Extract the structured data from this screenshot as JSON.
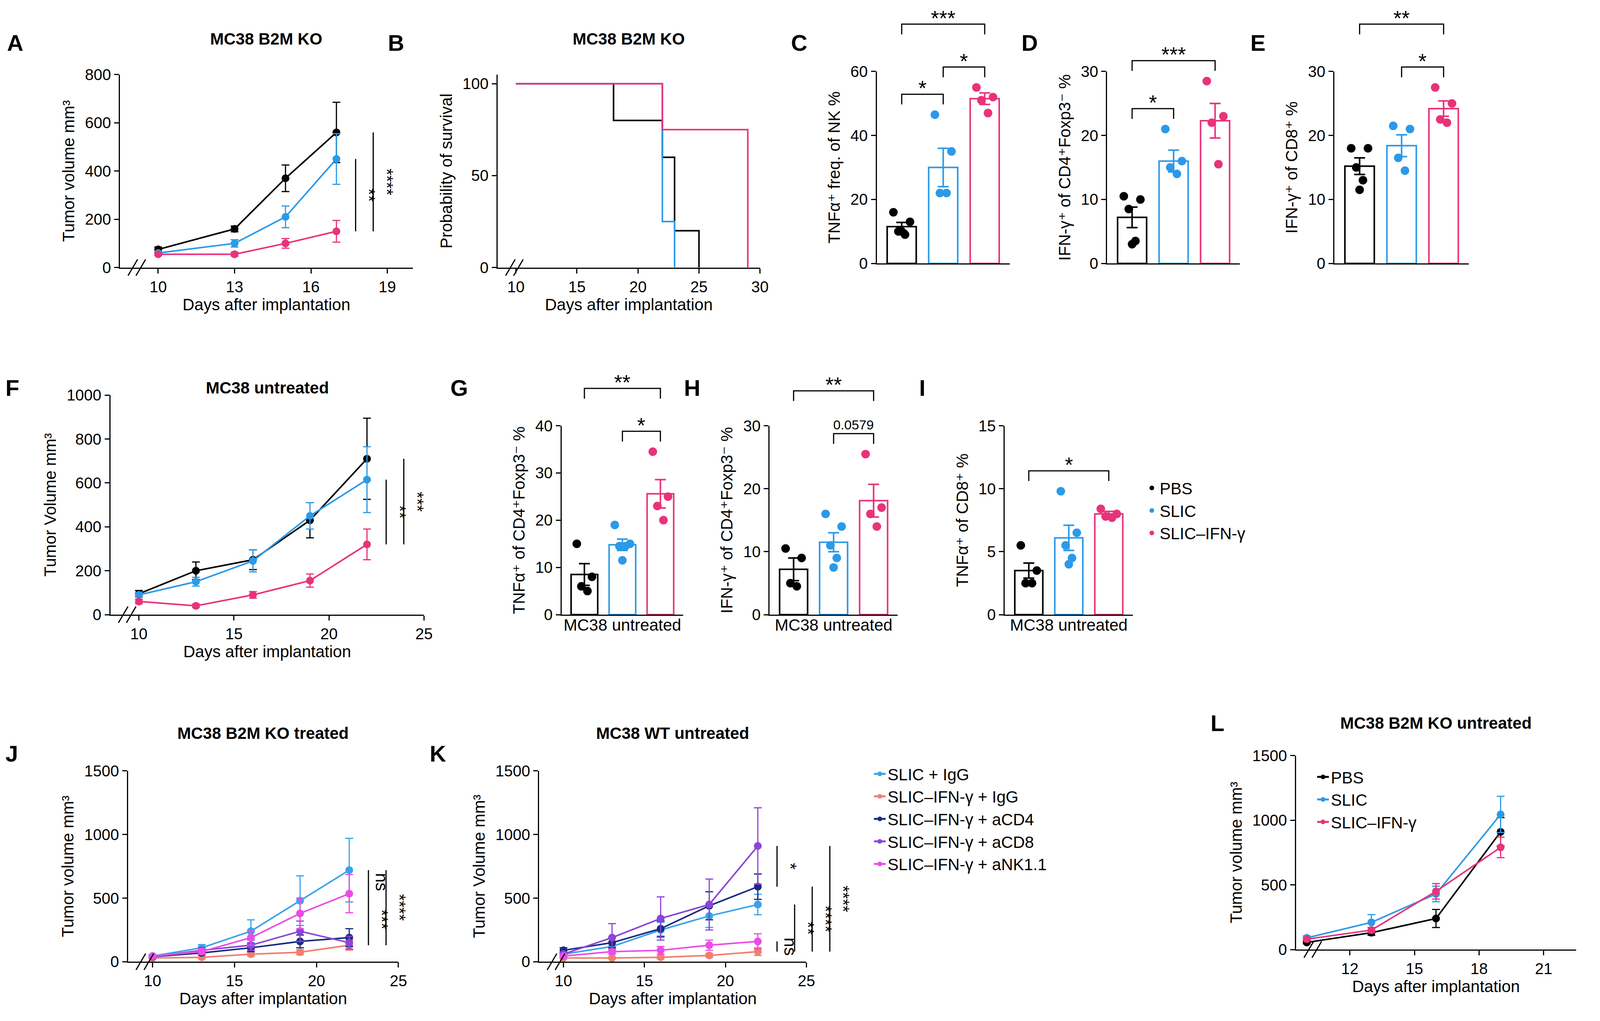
{
  "chart_data": [
    {
      "label": "A",
      "type": "line",
      "title": "MC38 B2M KO",
      "x_label": "Days after implantation",
      "y_label": "Tumor volume mm³",
      "x": [
        10,
        13,
        15,
        17
      ],
      "xlim": [
        8.5,
        20
      ],
      "xticks": [
        10,
        13,
        16,
        19
      ],
      "ylim": [
        0,
        800
      ],
      "yticks": [
        0,
        200,
        400,
        600,
        800
      ],
      "series": [
        {
          "name": "PBS",
          "color": "#000000",
          "values": [
            75,
            160,
            370,
            560
          ],
          "errors": [
            10,
            12,
            55,
            125
          ]
        },
        {
          "name": "SLIC",
          "color": "#2b9ae8",
          "values": [
            60,
            100,
            210,
            450
          ],
          "errors": [
            8,
            15,
            45,
            105
          ]
        },
        {
          "name": "SLIC–IFN-γ",
          "color": "#e8337a",
          "values": [
            55,
            55,
            100,
            150
          ],
          "errors": [
            5,
            8,
            20,
            45
          ]
        }
      ],
      "annotations": [
        {
          "text": "**",
          "series": [
            "SLIC",
            "SLIC–IFN-γ"
          ]
        },
        {
          "text": "****",
          "series": [
            "PBS",
            "SLIC–IFN-γ"
          ]
        }
      ]
    },
    {
      "label": "B",
      "type": "step",
      "title": "MC38 B2M KO",
      "x_label": "Days after implantation",
      "y_label": "Probability of survival",
      "xlim": [
        8.5,
        30
      ],
      "xticks": [
        10,
        15,
        20,
        25,
        30
      ],
      "ylim": [
        0,
        105
      ],
      "yticks": [
        0,
        50,
        100
      ],
      "series": [
        {
          "name": "PBS",
          "color": "#000000",
          "x": [
            10,
            18,
            22,
            23,
            25
          ],
          "values": [
            100,
            80,
            60,
            20,
            0
          ]
        },
        {
          "name": "SLIC",
          "color": "#2b9ae8",
          "x": [
            10,
            22,
            23
          ],
          "values": [
            100,
            25,
            0
          ]
        },
        {
          "name": "SLIC–IFN-γ",
          "color": "#e8337a",
          "x": [
            10,
            22,
            29
          ],
          "values": [
            100,
            75,
            0
          ]
        }
      ]
    },
    {
      "label": "C",
      "type": "bar",
      "y_label": "TNFα⁺ freq. of NK %",
      "categories": [
        "PBS",
        "SLIC",
        "SLIC–IFN-γ"
      ],
      "colors": [
        "#000000",
        "#2b9ae8",
        "#e8337a"
      ],
      "values": [
        11.5,
        30,
        51.5
      ],
      "errors": [
        1.3,
        6,
        1.8
      ],
      "points": [
        [
          16,
          13,
          10,
          9,
          10
        ],
        [
          46.5,
          35,
          22,
          22
        ],
        [
          55,
          52,
          51,
          47
        ]
      ],
      "ylim": [
        0,
        60
      ],
      "yticks": [
        0,
        20,
        40,
        60
      ],
      "tick_labels": "y",
      "annotations": [
        {
          "text": "*",
          "groups": [
            0,
            1
          ]
        },
        {
          "text": "*",
          "groups": [
            1,
            2
          ]
        },
        {
          "text": "***",
          "groups": [
            0,
            2
          ]
        }
      ]
    },
    {
      "label": "D",
      "type": "bar",
      "y_label": "IFN-γ⁺ of CD4⁺Foxp3⁻ %",
      "categories": [
        "PBS",
        "SLIC",
        "SLIC–IFN-γ"
      ],
      "colors": [
        "#000000",
        "#2b9ae8",
        "#e8337a"
      ],
      "values": [
        7.2,
        16,
        22.3
      ],
      "errors": [
        1.6,
        1.7,
        2.7
      ],
      "points": [
        [
          10.5,
          10,
          8.5,
          3.5,
          3
        ],
        [
          21,
          16,
          15,
          14
        ],
        [
          28.5,
          23,
          22,
          15.5
        ]
      ],
      "ylim": [
        0,
        30
      ],
      "yticks": [
        0,
        10,
        20,
        30
      ],
      "tick_labels": "y",
      "annotations": [
        {
          "text": "*",
          "groups": [
            0,
            1
          ]
        },
        {
          "text": "***",
          "groups": [
            0,
            2
          ]
        }
      ]
    },
    {
      "label": "E",
      "type": "bar",
      "y_label": "IFN-γ⁺ of CD8⁺ %",
      "categories": [
        "PBS",
        "SLIC",
        "SLIC–IFN-γ"
      ],
      "colors": [
        "#000000",
        "#2b9ae8",
        "#e8337a"
      ],
      "values": [
        15.2,
        18.4,
        24.2
      ],
      "errors": [
        1.3,
        1.7,
        1.2
      ],
      "points": [
        [
          18,
          18,
          15,
          13,
          11.5
        ],
        [
          21.5,
          21,
          16.5,
          14.5
        ],
        [
          27.5,
          25,
          22.5,
          22
        ]
      ],
      "ylim": [
        0,
        30
      ],
      "yticks": [
        0,
        10,
        20,
        30
      ],
      "tick_labels": "y",
      "annotations": [
        {
          "text": "*",
          "groups": [
            1,
            2
          ]
        },
        {
          "text": "**",
          "groups": [
            0,
            2
          ]
        }
      ]
    },
    {
      "label": "F",
      "type": "line",
      "title": "MC38 untreated",
      "x_label": "Days after implantation",
      "y_label": "Tumor Volume mm³",
      "x": [
        10,
        13,
        16,
        19,
        22
      ],
      "xlim": [
        8.5,
        25
      ],
      "xticks": [
        10,
        15,
        20,
        25
      ],
      "ylim": [
        0,
        1000
      ],
      "yticks": [
        0,
        200,
        400,
        600,
        800,
        1000
      ],
      "series": [
        {
          "name": "PBS",
          "color": "#000000",
          "values": [
            95,
            200,
            250,
            430,
            710
          ],
          "errors": [
            15,
            40,
            45,
            80,
            185
          ]
        },
        {
          "name": "SLIC",
          "color": "#2b9ae8",
          "values": [
            90,
            150,
            245,
            450,
            615
          ],
          "errors": [
            10,
            20,
            50,
            60,
            150
          ]
        },
        {
          "name": "SLIC–IFN-γ",
          "color": "#e8337a",
          "values": [
            60,
            40,
            90,
            155,
            320
          ],
          "errors": [
            10,
            8,
            15,
            30,
            70
          ]
        }
      ],
      "annotations": [
        {
          "text": "**",
          "series": [
            "SLIC",
            "SLIC–IFN-γ"
          ]
        },
        {
          "text": "***",
          "series": [
            "PBS",
            "SLIC–IFN-γ"
          ]
        }
      ]
    },
    {
      "label": "G",
      "type": "bar",
      "x_label": "MC38 untreated",
      "y_label": "TNFα⁺ of CD4⁺Foxp3⁻ %",
      "categories": [
        "PBS",
        "SLIC",
        "SLIC–IFN-γ"
      ],
      "colors": [
        "#000000",
        "#2b9ae8",
        "#e8337a"
      ],
      "values": [
        8.5,
        14.8,
        25.6
      ],
      "errors": [
        2.3,
        1.2,
        3
      ],
      "points": [
        [
          15,
          8,
          6,
          5
        ],
        [
          19,
          15,
          14.5,
          14.5,
          11.5
        ],
        [
          34.5,
          25,
          23,
          20
        ]
      ],
      "ylim": [
        0,
        40
      ],
      "yticks": [
        0,
        10,
        20,
        30,
        40
      ],
      "tick_labels": "y",
      "annotations": [
        {
          "text": "*",
          "groups": [
            1,
            2
          ]
        },
        {
          "text": "**",
          "groups": [
            0,
            2
          ]
        }
      ]
    },
    {
      "label": "H",
      "type": "bar",
      "x_label": "MC38 untreated",
      "y_label": "IFN-γ⁺ of CD4⁺Foxp3⁻ %",
      "categories": [
        "PBS",
        "SLIC",
        "SLIC–IFN-γ"
      ],
      "colors": [
        "#000000",
        "#2b9ae8",
        "#e8337a"
      ],
      "values": [
        7.2,
        11.5,
        18.1
      ],
      "errors": [
        1.8,
        1.5,
        2.6
      ],
      "points": [
        [
          10.5,
          9,
          5,
          4.5
        ],
        [
          16,
          14,
          11,
          9,
          7.5
        ],
        [
          25.5,
          17,
          16,
          14
        ]
      ],
      "ylim": [
        0,
        30
      ],
      "yticks": [
        0,
        10,
        20,
        30
      ],
      "tick_labels": "y",
      "annotations": [
        {
          "text": "0.0579",
          "groups": [
            1,
            2
          ]
        },
        {
          "text": "**",
          "groups": [
            0,
            2
          ]
        }
      ]
    },
    {
      "label": "I",
      "type": "bar",
      "x_label": "MC38 untreated",
      "y_label": "TNFα⁺ of CD8⁺ %",
      "categories": [
        "PBS",
        "SLIC",
        "SLIC–IFN-γ"
      ],
      "colors": [
        "#000000",
        "#2b9ae8",
        "#e8337a"
      ],
      "values": [
        3.5,
        6.1,
        8
      ],
      "errors": [
        0.6,
        1,
        0.2
      ],
      "points": [
        [
          5.5,
          3.5,
          2.5,
          2.5
        ],
        [
          9.8,
          6.5,
          5.5,
          4.5,
          4
        ],
        [
          8.4,
          8,
          7.8,
          7.7
        ]
      ],
      "ylim": [
        0,
        15
      ],
      "yticks": [
        0,
        5,
        10,
        15
      ],
      "tick_labels": "y",
      "legend": "right",
      "annotations": [
        {
          "text": "*",
          "groups": [
            0,
            2
          ]
        }
      ]
    },
    {
      "label": "J",
      "type": "line",
      "title": "MC38 B2M KO treated",
      "x_label": "Days after implantation",
      "y_label": "Tumor volume mm³",
      "x": [
        10,
        13,
        16,
        19,
        22
      ],
      "xlim": [
        8.5,
        25
      ],
      "xticks": [
        10,
        15,
        20,
        25
      ],
      "ylim": [
        0,
        1500
      ],
      "yticks": [
        0,
        500,
        1000,
        1500
      ],
      "series": [
        {
          "name": "SLIC + IgG",
          "color": "#3aa3e8",
          "values": [
            45,
            110,
            240,
            480,
            720
          ],
          "errors": [
            10,
            25,
            90,
            195,
            250
          ]
        },
        {
          "name": "SLIC–IFN-γ + IgG",
          "color": "#f07f6e",
          "values": [
            30,
            35,
            60,
            75,
            130
          ],
          "errors": [
            5,
            8,
            15,
            20,
            40
          ]
        },
        {
          "name": "SLIC–IFN-γ + aCD4",
          "color": "#1b2a80",
          "values": [
            40,
            70,
            110,
            160,
            190
          ],
          "errors": [
            8,
            15,
            30,
            50,
            70
          ]
        },
        {
          "name": "SLIC–IFN-γ + aCD8",
          "color": "#8b45d8",
          "values": [
            40,
            90,
            130,
            240,
            150
          ],
          "errors": [
            8,
            20,
            40,
            80,
            50
          ]
        },
        {
          "name": "SLIC–IFN-γ + aNK1.1",
          "color": "#ea4de6",
          "values": [
            45,
            80,
            190,
            380,
            535
          ],
          "errors": [
            10,
            20,
            60,
            120,
            150
          ]
        }
      ],
      "annotations": [
        {
          "text": "ns",
          "series": [
            "SLIC + IgG",
            "SLIC–IFN-γ + aNK1.1"
          ]
        },
        {
          "text": "***",
          "series": [
            "SLIC–IFN-γ + aNK1.1",
            "SLIC–IFN-γ + IgG"
          ]
        },
        {
          "text": "****",
          "series": [
            "SLIC + IgG",
            "SLIC–IFN-γ + IgG"
          ]
        }
      ]
    },
    {
      "label": "K",
      "type": "line",
      "title": "MC38 WT untreated",
      "x_label": "Days after implantation",
      "y_label": "Tumor Volume mm³",
      "x": [
        10,
        13,
        16,
        19,
        22
      ],
      "xlim": [
        8.5,
        25
      ],
      "xticks": [
        10,
        15,
        20,
        25
      ],
      "ylim": [
        0,
        1500
      ],
      "yticks": [
        0,
        500,
        1000,
        1500
      ],
      "legend": "right",
      "series": [
        {
          "name": "SLIC + IgG",
          "color": "#3aa3e8",
          "values": [
            60,
            120,
            250,
            360,
            450
          ],
          "errors": [
            15,
            30,
            60,
            90,
            80
          ]
        },
        {
          "name": "SLIC–IFN-γ + IgG",
          "color": "#f07f6e",
          "values": [
            30,
            30,
            35,
            50,
            80
          ],
          "errors": [
            5,
            5,
            10,
            15,
            30
          ]
        },
        {
          "name": "SLIC–IFN-γ + aCD4",
          "color": "#1b2a80",
          "values": [
            90,
            150,
            260,
            440,
            590
          ],
          "errors": [
            20,
            40,
            60,
            110,
            100
          ]
        },
        {
          "name": "SLIC–IFN-γ + aCD8",
          "color": "#8b45d8",
          "values": [
            60,
            190,
            340,
            450,
            910
          ],
          "errors": [
            15,
            110,
            170,
            200,
            300
          ]
        },
        {
          "name": "SLIC–IFN-γ + aNK1.1",
          "color": "#ea4de6",
          "values": [
            45,
            80,
            90,
            130,
            160
          ],
          "errors": [
            10,
            20,
            30,
            40,
            60
          ]
        }
      ],
      "annotations": [
        {
          "text": "*",
          "series": [
            "SLIC–IFN-γ + aCD8",
            "SLIC–IFN-γ + aCD4"
          ]
        },
        {
          "text": "ns",
          "series": [
            "SLIC–IFN-γ + aNK1.1",
            "SLIC–IFN-γ + IgG"
          ]
        },
        {
          "text": "**",
          "series": [
            "SLIC + IgG",
            "SLIC–IFN-γ + IgG"
          ]
        },
        {
          "text": "****",
          "series": [
            "SLIC–IFN-γ + aCD4",
            "SLIC–IFN-γ + IgG"
          ]
        },
        {
          "text": "****",
          "series": [
            "SLIC–IFN-γ + aCD8",
            "SLIC–IFN-γ + IgG"
          ]
        }
      ]
    },
    {
      "label": "L",
      "type": "line",
      "title": "MC38 B2M KO untreated",
      "x_label": "Days after implantation",
      "y_label": "Tumor volume mm³",
      "x": [
        10,
        13,
        16,
        19
      ],
      "xlim": [
        9.5,
        22.5
      ],
      "xticks": [
        12,
        15,
        18,
        21
      ],
      "ylim": [
        0,
        1500
      ],
      "yticks": [
        0,
        500,
        1000,
        1500
      ],
      "legend": "upper left",
      "series": [
        {
          "name": "PBS",
          "color": "#000000",
          "values": [
            55,
            130,
            240,
            910
          ],
          "errors": [
            10,
            20,
            70,
            110
          ]
        },
        {
          "name": "SLIC",
          "color": "#2b9ae8",
          "values": [
            90,
            210,
            430,
            1045
          ],
          "errors": [
            15,
            60,
            60,
            140
          ]
        },
        {
          "name": "SLIC–IFN-γ",
          "color": "#e8337a",
          "values": [
            80,
            150,
            450,
            790
          ],
          "errors": [
            10,
            20,
            60,
            80
          ]
        }
      ]
    }
  ]
}
